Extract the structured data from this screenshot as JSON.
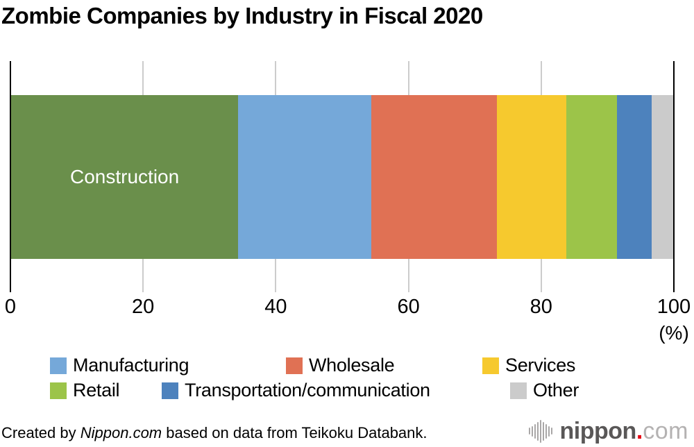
{
  "title": "Zombie Companies by Industry in Fiscal 2020",
  "chart_data": {
    "type": "stacked_bar_horizontal",
    "title": "Zombie Companies by Industry in Fiscal 2020",
    "unit": "%",
    "xlim": [
      0,
      100
    ],
    "x_ticks": [
      0,
      20,
      40,
      60,
      80,
      100
    ],
    "x_axis_unit_label": "(%)",
    "grid": true,
    "gridline_color": "#CCCCCC",
    "axis_line_color": "#000000",
    "segments": [
      {
        "name": "Construction",
        "value": 34.3,
        "color": "#6A8F4B",
        "label_inside": "Construction",
        "label_color": "#FFFFFF"
      },
      {
        "name": "Manufacturing",
        "value": 20.1,
        "color": "#75A8D9"
      },
      {
        "name": "Wholesale",
        "value": 19.0,
        "color": "#E07154"
      },
      {
        "name": "Services",
        "value": 10.5,
        "color": "#F6C92E"
      },
      {
        "name": "Retail",
        "value": 7.6,
        "color": "#9CC449"
      },
      {
        "name": "Transportation/communication",
        "value": 5.3,
        "color": "#4D82BD"
      },
      {
        "name": "Other",
        "value": 3.2,
        "color": "#CBCBCB"
      }
    ]
  },
  "legend": {
    "items": [
      {
        "label": "Manufacturing",
        "color": "#75A8D9"
      },
      {
        "label": "Wholesale",
        "color": "#E07154"
      },
      {
        "label": "Services",
        "color": "#F6C92E"
      },
      {
        "label": "Retail",
        "color": "#9CC449"
      },
      {
        "label": "Transportation/communication",
        "color": "#4D82BD"
      },
      {
        "label": "Other",
        "color": "#CBCBCB"
      }
    ]
  },
  "footer": {
    "credit_prefix": "Created by ",
    "credit_source": "Nippon.com",
    "credit_suffix": " based on data from Teikoku Databank."
  },
  "logo": {
    "name": "nippon",
    "dot": ".",
    "tld": "com"
  }
}
